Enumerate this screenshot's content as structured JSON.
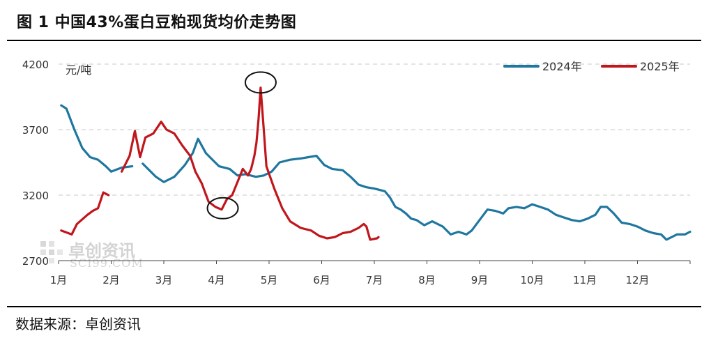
{
  "figure": {
    "title": "图 1 中国43%蛋白豆粕现货均价走势图",
    "source": "数据来源：卓创资讯",
    "watermark": {
      "cn": "卓创资讯",
      "en": "SCI99.COM"
    }
  },
  "chart_data": {
    "type": "line",
    "ylabel": "元/吨",
    "ylim": [
      2700,
      4200
    ],
    "yticks": [
      2700,
      3200,
      3700,
      4200
    ],
    "xlim": [
      1,
      13
    ],
    "xticks": [
      {
        "label": "1月",
        "x": 1
      },
      {
        "label": "2月",
        "x": 2
      },
      {
        "label": "3月",
        "x": 3
      },
      {
        "label": "4月",
        "x": 4
      },
      {
        "label": "5月",
        "x": 5
      },
      {
        "label": "6月",
        "x": 6
      },
      {
        "label": "7月",
        "x": 7
      },
      {
        "label": "8月",
        "x": 8
      },
      {
        "label": "9月",
        "x": 9
      },
      {
        "label": "10月",
        "x": 10
      },
      {
        "label": "11月",
        "x": 11
      },
      {
        "label": "12月",
        "x": 12
      }
    ],
    "grid": "horizontal-dashed",
    "legend_position": "top-right",
    "colors": {
      "2024年": "#1f77a0",
      "2025年": "#c0161c"
    },
    "series": [
      {
        "name": "2024年",
        "segments": [
          [
            [
              1.05,
              3885
            ],
            [
              1.15,
              3860
            ],
            [
              1.3,
              3700
            ],
            [
              1.45,
              3560
            ],
            [
              1.6,
              3490
            ],
            [
              1.75,
              3470
            ],
            [
              1.9,
              3420
            ],
            [
              2.0,
              3380
            ],
            [
              2.2,
              3410
            ],
            [
              2.4,
              3420
            ]
          ],
          [
            [
              2.6,
              3440
            ],
            [
              2.85,
              3340
            ],
            [
              3.0,
              3300
            ],
            [
              3.2,
              3340
            ],
            [
              3.4,
              3430
            ],
            [
              3.55,
              3520
            ],
            [
              3.65,
              3630
            ],
            [
              3.8,
              3520
            ],
            [
              3.95,
              3460
            ],
            [
              4.05,
              3420
            ],
            [
              4.25,
              3400
            ],
            [
              4.4,
              3350
            ],
            [
              4.55,
              3360
            ],
            [
              4.75,
              3340
            ],
            [
              4.9,
              3350
            ],
            [
              5.05,
              3380
            ],
            [
              5.2,
              3450
            ],
            [
              5.4,
              3470
            ],
            [
              5.6,
              3480
            ],
            [
              5.75,
              3490
            ],
            [
              5.9,
              3500
            ],
            [
              6.05,
              3430
            ],
            [
              6.2,
              3400
            ],
            [
              6.4,
              3390
            ],
            [
              6.55,
              3340
            ],
            [
              6.7,
              3280
            ],
            [
              6.85,
              3260
            ],
            [
              7.0,
              3250
            ],
            [
              7.2,
              3230
            ],
            [
              7.3,
              3180
            ],
            [
              7.4,
              3110
            ],
            [
              7.5,
              3090
            ],
            [
              7.6,
              3060
            ],
            [
              7.7,
              3020
            ],
            [
              7.8,
              3010
            ],
            [
              7.95,
              2970
            ],
            [
              8.1,
              3000
            ],
            [
              8.3,
              2960
            ],
            [
              8.45,
              2900
            ],
            [
              8.6,
              2920
            ],
            [
              8.75,
              2900
            ],
            [
              8.85,
              2930
            ],
            [
              9.0,
              3010
            ],
            [
              9.15,
              3090
            ],
            [
              9.3,
              3080
            ],
            [
              9.45,
              3060
            ],
            [
              9.55,
              3100
            ],
            [
              9.7,
              3110
            ],
            [
              9.85,
              3100
            ],
            [
              10.0,
              3130
            ],
            [
              10.15,
              3110
            ],
            [
              10.3,
              3090
            ],
            [
              10.45,
              3050
            ],
            [
              10.6,
              3030
            ],
            [
              10.75,
              3010
            ],
            [
              10.9,
              3000
            ],
            [
              11.05,
              3020
            ],
            [
              11.2,
              3050
            ],
            [
              11.3,
              3110
            ],
            [
              11.42,
              3110
            ],
            [
              11.55,
              3060
            ],
            [
              11.7,
              2990
            ],
            [
              11.85,
              2980
            ],
            [
              12.0,
              2960
            ],
            [
              12.15,
              2930
            ],
            [
              12.3,
              2910
            ],
            [
              12.45,
              2900
            ],
            [
              12.55,
              2860
            ],
            [
              12.65,
              2880
            ],
            [
              12.75,
              2900
            ],
            [
              12.9,
              2900
            ],
            [
              13.0,
              2920
            ]
          ]
        ]
      },
      {
        "name": "2025年",
        "segments": [
          [
            [
              1.05,
              2930
            ],
            [
              1.25,
              2900
            ],
            [
              1.35,
              2980
            ],
            [
              1.55,
              3050
            ],
            [
              1.65,
              3080
            ],
            [
              1.75,
              3100
            ],
            [
              1.85,
              3220
            ],
            [
              1.95,
              3200
            ]
          ],
          [
            [
              2.2,
              3380
            ],
            [
              2.35,
              3500
            ],
            [
              2.45,
              3690
            ],
            [
              2.55,
              3490
            ],
            [
              2.65,
              3640
            ],
            [
              2.8,
              3670
            ],
            [
              2.95,
              3760
            ],
            [
              3.05,
              3700
            ],
            [
              3.2,
              3670
            ],
            [
              3.35,
              3580
            ],
            [
              3.5,
              3500
            ],
            [
              3.6,
              3380
            ],
            [
              3.72,
              3290
            ],
            [
              3.85,
              3150
            ],
            [
              3.98,
              3110
            ],
            [
              4.1,
              3090
            ],
            [
              4.2,
              3170
            ],
            [
              4.3,
              3200
            ],
            [
              4.4,
              3300
            ],
            [
              4.5,
              3400
            ],
            [
              4.6,
              3350
            ],
            [
              4.66,
              3400
            ],
            [
              4.72,
              3500
            ],
            [
              4.76,
              3600
            ],
            [
              4.8,
              3780
            ],
            [
              4.84,
              4020
            ],
            [
              4.9,
              3700
            ],
            [
              4.95,
              3420
            ],
            [
              5.1,
              3250
            ],
            [
              5.25,
              3100
            ],
            [
              5.4,
              3000
            ],
            [
              5.6,
              2950
            ],
            [
              5.8,
              2930
            ],
            [
              5.95,
              2890
            ],
            [
              6.1,
              2870
            ],
            [
              6.25,
              2880
            ],
            [
              6.4,
              2910
            ],
            [
              6.55,
              2920
            ],
            [
              6.7,
              2950
            ],
            [
              6.8,
              2980
            ],
            [
              6.85,
              2960
            ],
            [
              6.92,
              2860
            ],
            [
              7.05,
              2870
            ],
            [
              7.08,
              2880
            ]
          ]
        ]
      }
    ],
    "annotations": [
      {
        "type": "circle",
        "x": 4.12,
        "y": 3100
      },
      {
        "type": "circle",
        "x": 4.84,
        "y": 4060
      }
    ]
  }
}
